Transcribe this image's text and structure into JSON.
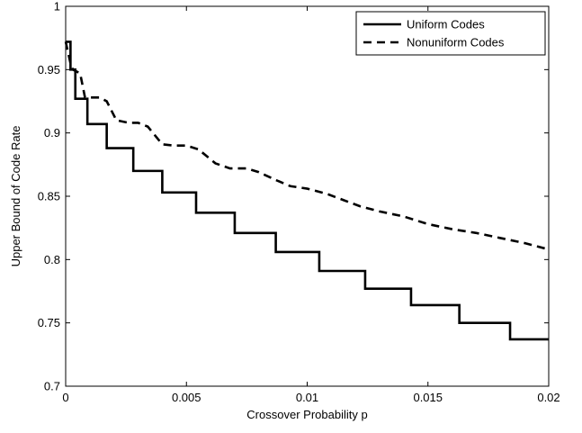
{
  "chart_data": {
    "type": "line",
    "xlabel": "Crossover Probability p",
    "ylabel": "Upper Bound of Code Rate",
    "xlim": [
      0,
      0.02
    ],
    "ylim": [
      0.7,
      1.0
    ],
    "x_ticks": [
      0,
      0.005,
      0.01,
      0.015,
      0.02
    ],
    "x_tick_labels": [
      "0",
      "0.005",
      "0.01",
      "0.015",
      "0.02"
    ],
    "y_ticks": [
      0.7,
      0.75,
      0.8,
      0.85,
      0.9,
      0.95,
      1.0
    ],
    "y_tick_labels": [
      "0.7",
      "0.75",
      "0.8",
      "0.85",
      "0.9",
      "0.95",
      "1"
    ],
    "grid": false,
    "legend_position": "top-right",
    "series": [
      {
        "name": "Uniform Codes",
        "style": "solid",
        "color": "#000000",
        "x": [
          0,
          0.0002,
          0.0002,
          0.0004,
          0.0004,
          0.0009,
          0.0009,
          0.0017,
          0.0017,
          0.0028,
          0.0028,
          0.004,
          0.004,
          0.0054,
          0.0054,
          0.007,
          0.007,
          0.0087,
          0.0087,
          0.0105,
          0.0105,
          0.0124,
          0.0124,
          0.0143,
          0.0143,
          0.0163,
          0.0163,
          0.0184,
          0.0184,
          0.02
        ],
        "y": [
          0.972,
          0.972,
          0.95,
          0.95,
          0.927,
          0.927,
          0.907,
          0.907,
          0.888,
          0.888,
          0.87,
          0.87,
          0.853,
          0.853,
          0.837,
          0.837,
          0.821,
          0.821,
          0.806,
          0.806,
          0.791,
          0.791,
          0.777,
          0.777,
          0.764,
          0.764,
          0.75,
          0.75,
          0.737,
          0.737
        ]
      },
      {
        "name": "Nonuniform Codes",
        "style": "dashed",
        "color": "#000000",
        "x": [
          0,
          0.0002,
          0.0003,
          0.0006,
          0.0008,
          0.0014,
          0.0017,
          0.0021,
          0.0026,
          0.003,
          0.0034,
          0.004,
          0.0045,
          0.005,
          0.0055,
          0.0062,
          0.0068,
          0.0075,
          0.008,
          0.0088,
          0.0093,
          0.01,
          0.0108,
          0.0115,
          0.0122,
          0.013,
          0.014,
          0.015,
          0.016,
          0.017,
          0.018,
          0.019,
          0.02
        ],
        "y": [
          0.972,
          0.955,
          0.95,
          0.947,
          0.928,
          0.928,
          0.925,
          0.91,
          0.908,
          0.908,
          0.905,
          0.891,
          0.89,
          0.89,
          0.887,
          0.876,
          0.872,
          0.872,
          0.869,
          0.862,
          0.858,
          0.856,
          0.852,
          0.847,
          0.842,
          0.838,
          0.834,
          0.828,
          0.824,
          0.821,
          0.817,
          0.813,
          0.808
        ]
      }
    ]
  }
}
